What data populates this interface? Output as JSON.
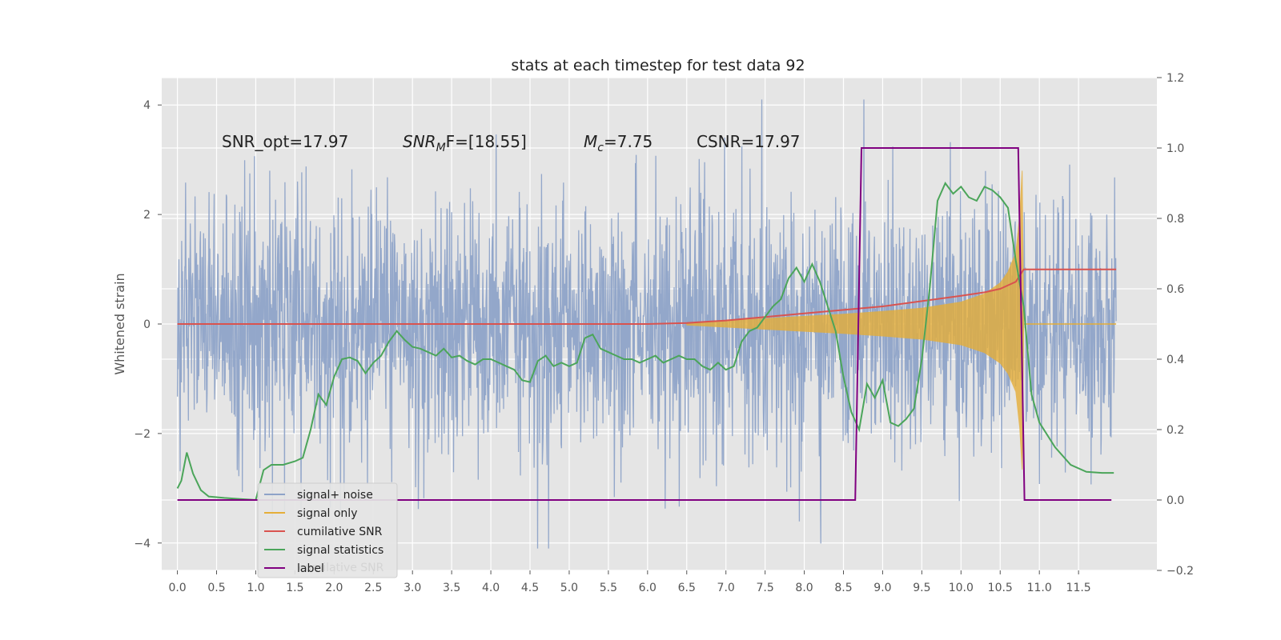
{
  "chart_data": {
    "type": "line",
    "title": "stats at each timestep for test data 92",
    "xlabel": "",
    "ylabel": "Whitened strain",
    "xlim": [
      -0.2,
      12.5
    ],
    "ylim": [
      -4.5,
      4.5
    ],
    "y2lim": [
      -0.2,
      1.2
    ],
    "xticks": [
      "0.0",
      "0.5",
      "1.0",
      "1.5",
      "2.0",
      "2.5",
      "3.0",
      "3.5",
      "4.0",
      "4.5",
      "5.0",
      "5.5",
      "6.0",
      "6.5",
      "7.0",
      "7.5",
      "8.0",
      "8.5",
      "9.0",
      "9.5",
      "10.0",
      "10.5",
      "11.0",
      "11.5"
    ],
    "yticks": [
      "4",
      "2",
      "0",
      "−2",
      "−4"
    ],
    "y2ticks": [
      "1.2",
      "1.0",
      "0.8",
      "0.6",
      "0.4",
      "0.2",
      "0.0",
      "−0.2"
    ],
    "grid": true,
    "legend_position": "lower-left",
    "annotations": {
      "snr_opt": "SNR_opt=17.97",
      "snr_mf_sym": "SNR",
      "snr_mf_sub": "M",
      "snr_mf_rest": "F=[18.55]",
      "mc_sym": "M",
      "mc_sub": "c",
      "mc_rest": "=7.75",
      "csnr": "CSNR=17.97"
    },
    "series": [
      {
        "name": "signal+ noise",
        "color": "#8ea3c8",
        "axis": "left",
        "style": "noise",
        "x_range": [
          0,
          11.98
        ],
        "amplitude_std": 1.0
      },
      {
        "name": "signal only",
        "color": "#e5ae38",
        "axis": "left",
        "style": "chirp",
        "envelope_x": [
          6.5,
          7.0,
          7.5,
          8.0,
          8.5,
          9.0,
          9.5,
          10.0,
          10.3,
          10.5,
          10.6,
          10.7,
          10.75,
          10.78,
          10.8
        ],
        "envelope_y": [
          0.02,
          0.06,
          0.1,
          0.14,
          0.18,
          0.23,
          0.29,
          0.4,
          0.55,
          0.75,
          0.95,
          1.3,
          2.0,
          2.8,
          0.05
        ]
      },
      {
        "name": "cumilative SNR",
        "color": "#d9534f",
        "axis": "right",
        "x": [
          0,
          6.0,
          6.5,
          7.0,
          7.5,
          8.0,
          8.5,
          9.0,
          9.5,
          10.0,
          10.3,
          10.5,
          10.6,
          10.7,
          10.8,
          11.0,
          11.98
        ],
        "values": [
          0.5,
          0.5,
          0.503,
          0.51,
          0.52,
          0.53,
          0.54,
          0.55,
          0.565,
          0.58,
          0.59,
          0.6,
          0.61,
          0.62,
          0.655,
          0.655,
          0.655
        ]
      },
      {
        "name": "signal statistics",
        "color": "#4ba55a",
        "axis": "right",
        "x": [
          0,
          0.05,
          0.12,
          0.2,
          0.3,
          0.4,
          0.6,
          0.8,
          1.0,
          1.1,
          1.2,
          1.35,
          1.5,
          1.6,
          1.7,
          1.8,
          1.9,
          2.0,
          2.1,
          2.2,
          2.3,
          2.4,
          2.5,
          2.6,
          2.7,
          2.8,
          2.9,
          3.0,
          3.1,
          3.2,
          3.3,
          3.4,
          3.5,
          3.6,
          3.7,
          3.8,
          3.9,
          4.0,
          4.1,
          4.2,
          4.3,
          4.4,
          4.5,
          4.6,
          4.7,
          4.8,
          4.9,
          5.0,
          5.1,
          5.2,
          5.3,
          5.4,
          5.5,
          5.6,
          5.7,
          5.8,
          5.9,
          6.0,
          6.1,
          6.2,
          6.3,
          6.4,
          6.5,
          6.6,
          6.7,
          6.8,
          6.9,
          7.0,
          7.1,
          7.2,
          7.3,
          7.4,
          7.5,
          7.6,
          7.7,
          7.8,
          7.9,
          8.0,
          8.1,
          8.2,
          8.3,
          8.4,
          8.5,
          8.6,
          8.7,
          8.8,
          8.9,
          9.0,
          9.1,
          9.2,
          9.3,
          9.4,
          9.5,
          9.6,
          9.7,
          9.8,
          9.9,
          10.0,
          10.1,
          10.2,
          10.3,
          10.4,
          10.5,
          10.6,
          10.7,
          10.8,
          10.9,
          11.0,
          11.2,
          11.4,
          11.6,
          11.8,
          11.95
        ],
        "values": [
          0.033,
          0.055,
          0.135,
          0.075,
          0.028,
          0.01,
          0.006,
          0.003,
          0.0,
          0.085,
          0.1,
          0.1,
          0.11,
          0.12,
          0.2,
          0.3,
          0.27,
          0.35,
          0.4,
          0.405,
          0.395,
          0.36,
          0.39,
          0.41,
          0.45,
          0.48,
          0.455,
          0.435,
          0.43,
          0.42,
          0.41,
          0.43,
          0.405,
          0.41,
          0.395,
          0.385,
          0.4,
          0.4,
          0.39,
          0.38,
          0.37,
          0.34,
          0.335,
          0.395,
          0.41,
          0.38,
          0.39,
          0.38,
          0.39,
          0.46,
          0.47,
          0.43,
          0.42,
          0.41,
          0.4,
          0.4,
          0.39,
          0.4,
          0.41,
          0.39,
          0.4,
          0.41,
          0.4,
          0.4,
          0.38,
          0.37,
          0.39,
          0.37,
          0.38,
          0.45,
          0.48,
          0.49,
          0.52,
          0.55,
          0.57,
          0.63,
          0.66,
          0.62,
          0.67,
          0.62,
          0.55,
          0.48,
          0.35,
          0.25,
          0.2,
          0.33,
          0.29,
          0.34,
          0.22,
          0.21,
          0.23,
          0.26,
          0.4,
          0.6,
          0.85,
          0.9,
          0.87,
          0.89,
          0.86,
          0.85,
          0.89,
          0.88,
          0.86,
          0.83,
          0.68,
          0.55,
          0.3,
          0.22,
          0.15,
          0.1,
          0.08,
          0.077,
          0.077
        ]
      },
      {
        "name": "label",
        "color": "#800080",
        "axis": "right",
        "x": [
          0,
          8.65,
          8.73,
          10.73,
          10.81,
          11.92
        ],
        "values": [
          0.0,
          0.0,
          1.0,
          1.0,
          0.0,
          0.0
        ]
      }
    ],
    "legend": [
      "signal+ noise",
      "signal only",
      "cumilative SNR",
      "signal statistics",
      "label"
    ],
    "legend_ghost_text": "cumilative SNR"
  }
}
